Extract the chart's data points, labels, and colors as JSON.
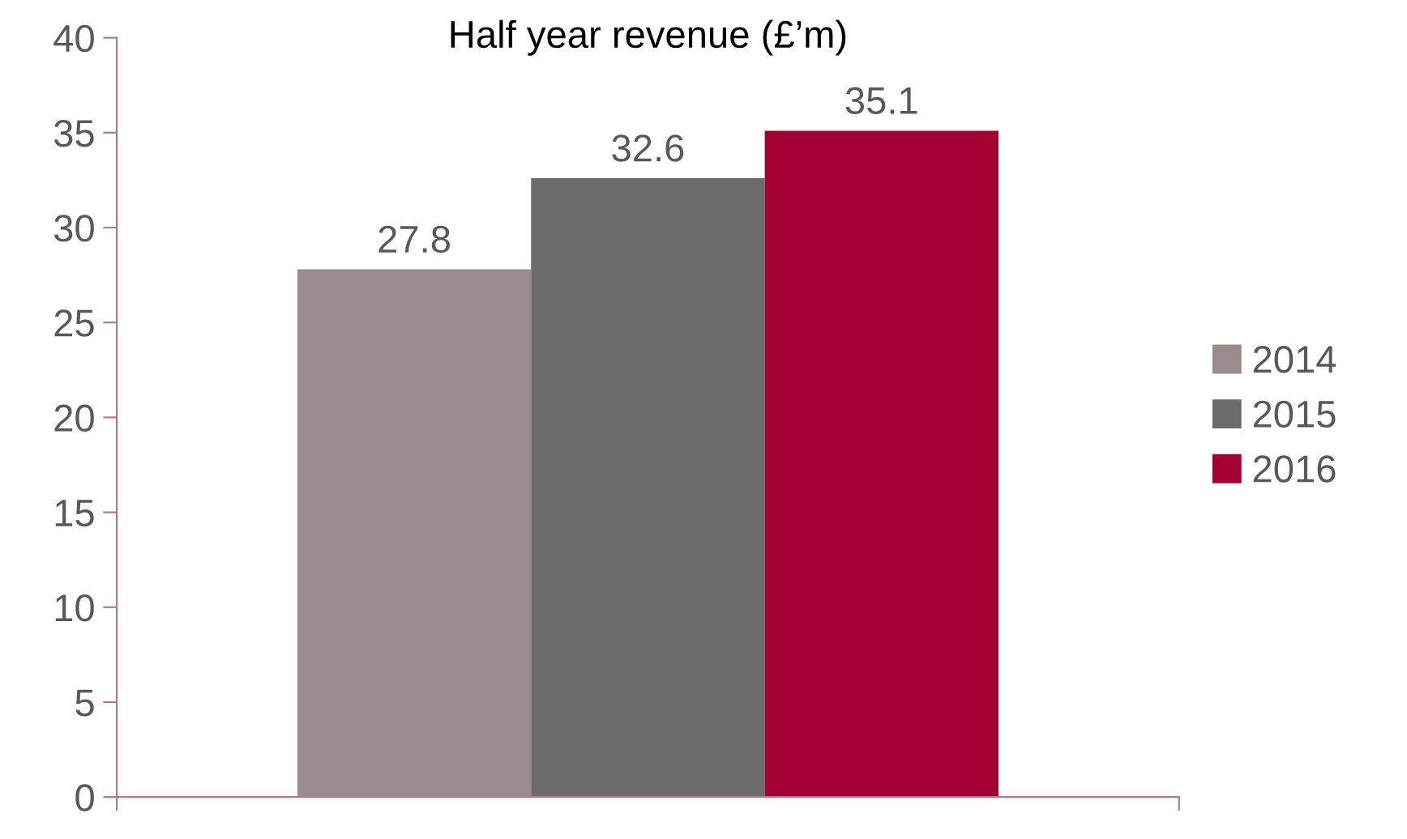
{
  "chart_data": {
    "type": "bar",
    "title": "Half year revenue (£’m)",
    "categories": [
      null
    ],
    "series": [
      {
        "name": "2014",
        "color": "#9a8b8d",
        "values": [
          27.8
        ]
      },
      {
        "name": "2015",
        "color": "#6b6b6b",
        "values": [
          32.6
        ]
      },
      {
        "name": "2016",
        "color": "#a50034",
        "values": [
          35.1
        ]
      }
    ],
    "ylim": [
      0,
      40
    ],
    "yticks": [
      0,
      5,
      10,
      15,
      20,
      25,
      30,
      35,
      40
    ],
    "data_labels": true,
    "legend": "right"
  }
}
